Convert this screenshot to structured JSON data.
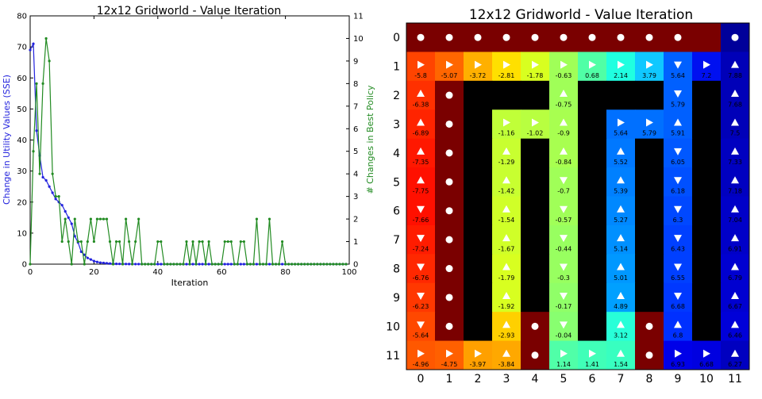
{
  "left": {
    "chart_data": {
      "type": "line",
      "title": "12x12 Gridworld - Value Iteration",
      "xlabel": "Iteration",
      "ylabel_left": "Change in Utility Values (SSE)",
      "ylabel_right": "# Changes in Best Policy",
      "xlim": [
        0,
        100
      ],
      "ylim_left": [
        0,
        80
      ],
      "ylim_right": [
        0,
        11
      ],
      "x_ticks": [
        "0",
        "20",
        "40",
        "60",
        "80",
        "100"
      ],
      "yleft_ticks": [
        "0",
        "10",
        "20",
        "30",
        "40",
        "50",
        "60",
        "70",
        "80"
      ],
      "yright_ticks": [
        "0",
        "1",
        "2",
        "3",
        "4",
        "5",
        "6",
        "7",
        "8",
        "9",
        "10",
        "11"
      ],
      "series": [
        {
          "color": "#2222dd",
          "axis": "left",
          "values": [
            69,
            71,
            43,
            35,
            28,
            27,
            25,
            23,
            21,
            20,
            19,
            17,
            15,
            13,
            9,
            7,
            4,
            3,
            2,
            1.5,
            1,
            0.7,
            0.5,
            0.4,
            0.3,
            0.2,
            0.15,
            0.1,
            0.08,
            0.06,
            0.05,
            0.04,
            0.03,
            0.02,
            0.02,
            0.01,
            0.01,
            0.01,
            0,
            0,
            0,
            0,
            0,
            0,
            0,
            0,
            0,
            0,
            0,
            0,
            0,
            0,
            0,
            0,
            0,
            0,
            0,
            0,
            0,
            0,
            0,
            0,
            0,
            0,
            0,
            0,
            0,
            0,
            0,
            0,
            0,
            0,
            0,
            0,
            0,
            0,
            0,
            0,
            0,
            0,
            0,
            0,
            0,
            0,
            0,
            0,
            0,
            0,
            0,
            0,
            0,
            0,
            0,
            0,
            0,
            0,
            0,
            0,
            0,
            0
          ]
        },
        {
          "color": "#228b22",
          "axis": "right",
          "values": [
            0,
            5,
            8,
            4,
            8,
            10,
            9,
            4,
            3,
            3,
            1,
            2,
            1,
            0,
            2,
            1,
            1,
            0,
            1,
            2,
            1,
            2,
            2,
            2,
            2,
            1,
            0,
            1,
            1,
            0,
            2,
            1,
            0,
            1,
            2,
            0,
            0,
            0,
            0,
            0,
            1,
            1,
            0,
            0,
            0,
            0,
            0,
            0,
            0,
            1,
            0,
            1,
            0,
            1,
            1,
            0,
            1,
            0,
            0,
            0,
            0,
            1,
            1,
            1,
            0,
            0,
            1,
            1,
            0,
            0,
            0,
            2,
            0,
            0,
            0,
            2,
            0,
            0,
            0,
            1,
            0,
            0,
            0,
            0,
            0,
            0,
            0,
            0,
            0,
            0,
            0,
            0,
            0,
            0,
            0,
            0,
            0,
            0,
            0,
            0
          ]
        }
      ]
    }
  },
  "right": {
    "title": "12x12 Gridworld - Value Iteration",
    "col_labels": [
      "0",
      "1",
      "2",
      "3",
      "4",
      "5",
      "6",
      "7",
      "8",
      "9",
      "10",
      "11"
    ],
    "row_labels": [
      "0",
      "1",
      "2",
      "3",
      "4",
      "5",
      "6",
      "7",
      "8",
      "9",
      "10",
      "11"
    ],
    "grid": [
      [
        [
          "#7a0000",
          "o",
          ""
        ],
        [
          "#7a0000",
          "o",
          ""
        ],
        [
          "#7a0000",
          "o",
          ""
        ],
        [
          "#7a0000",
          "o",
          ""
        ],
        [
          "#7a0000",
          "o",
          ""
        ],
        [
          "#7a0000",
          "o",
          ""
        ],
        [
          "#7a0000",
          "o",
          ""
        ],
        [
          "#7a0000",
          "o",
          ""
        ],
        [
          "#7a0000",
          "o",
          ""
        ],
        [
          "#7a0000",
          "o",
          ""
        ],
        [
          "#7a0000",
          "",
          ""
        ],
        [
          "#00009a",
          "o",
          ""
        ]
      ],
      [
        [
          "#ff4400",
          "r",
          "-5.8"
        ],
        [
          "#ff6600",
          "r",
          "-5.07"
        ],
        [
          "#ffb000",
          "r",
          "-3.72"
        ],
        [
          "#ffe000",
          "r",
          "-2.81"
        ],
        [
          "#d8ff20",
          "r",
          "-1.78"
        ],
        [
          "#a0ff58",
          "r",
          "-0.63"
        ],
        [
          "#50ffa6",
          "r",
          "0.68"
        ],
        [
          "#20ffe0",
          "r",
          "2.14"
        ],
        [
          "#10c8ff",
          "r",
          "3.79"
        ],
        [
          "#0060ff",
          "d",
          "5.64"
        ],
        [
          "#0010f0",
          "r",
          "7.2"
        ],
        [
          "#0000b8",
          "u",
          "7.88"
        ]
      ],
      [
        [
          "#ff3000",
          "u",
          "-6.38"
        ],
        [
          "#7a0000",
          "o",
          ""
        ],
        [
          "#000000",
          "",
          ""
        ],
        [
          "#000000",
          "",
          ""
        ],
        [
          "#000000",
          "",
          ""
        ],
        [
          "#a0ff58",
          "u",
          "-0.75"
        ],
        [
          "#000000",
          "",
          ""
        ],
        [
          "#000000",
          "",
          ""
        ],
        [
          "#000000",
          "",
          ""
        ],
        [
          "#0060ff",
          "d",
          "5.79"
        ],
        [
          "#000000",
          "",
          ""
        ],
        [
          "#0000b8",
          "u",
          "7.68"
        ]
      ],
      [
        [
          "#ff2400",
          "u",
          "-6.89"
        ],
        [
          "#7a0000",
          "o",
          ""
        ],
        [
          "#000000",
          "",
          ""
        ],
        [
          "#c0ff38",
          "r",
          "-1.16"
        ],
        [
          "#b8ff40",
          "r",
          "-1.02"
        ],
        [
          "#a8ff50",
          "u",
          "-0.9"
        ],
        [
          "#000000",
          "",
          ""
        ],
        [
          "#0070ff",
          "r",
          "5.64"
        ],
        [
          "#0070ff",
          "r",
          "5.79"
        ],
        [
          "#0060ff",
          "u",
          "5.91"
        ],
        [
          "#000000",
          "",
          ""
        ],
        [
          "#0000b8",
          "u",
          "7.5"
        ]
      ],
      [
        [
          "#ff1800",
          "u",
          "-7.35"
        ],
        [
          "#7a0000",
          "o",
          ""
        ],
        [
          "#000000",
          "",
          ""
        ],
        [
          "#c8ff30",
          "u",
          "-1.29"
        ],
        [
          "#000000",
          "",
          ""
        ],
        [
          "#a8ff50",
          "u",
          "-0.84"
        ],
        [
          "#000000",
          "",
          ""
        ],
        [
          "#0078ff",
          "u",
          "5.52"
        ],
        [
          "#000000",
          "",
          ""
        ],
        [
          "#0058ff",
          "d",
          "6.05"
        ],
        [
          "#000000",
          "",
          ""
        ],
        [
          "#0000c0",
          "u",
          "7.33"
        ]
      ],
      [
        [
          "#ff1000",
          "u",
          "-7.75"
        ],
        [
          "#7a0000",
          "o",
          ""
        ],
        [
          "#000000",
          "",
          ""
        ],
        [
          "#c8ff30",
          "u",
          "-1.42"
        ],
        [
          "#000000",
          "",
          ""
        ],
        [
          "#a0ff58",
          "d",
          "-0.7"
        ],
        [
          "#000000",
          "",
          ""
        ],
        [
          "#0080ff",
          "u",
          "5.39"
        ],
        [
          "#000000",
          "",
          ""
        ],
        [
          "#0050ff",
          "d",
          "6.18"
        ],
        [
          "#000000",
          "",
          ""
        ],
        [
          "#0000c0",
          "u",
          "7.18"
        ]
      ],
      [
        [
          "#ff1000",
          "d",
          "-7.66"
        ],
        [
          "#7a0000",
          "o",
          ""
        ],
        [
          "#000000",
          "",
          ""
        ],
        [
          "#d0ff28",
          "u",
          "-1.54"
        ],
        [
          "#000000",
          "",
          ""
        ],
        [
          "#a0ff58",
          "d",
          "-0.57"
        ],
        [
          "#000000",
          "",
          ""
        ],
        [
          "#0088ff",
          "u",
          "5.27"
        ],
        [
          "#000000",
          "",
          ""
        ],
        [
          "#0048ff",
          "d",
          "6.3"
        ],
        [
          "#000000",
          "",
          ""
        ],
        [
          "#0000c8",
          "u",
          "7.04"
        ]
      ],
      [
        [
          "#ff1c00",
          "d",
          "-7.24"
        ],
        [
          "#7a0000",
          "o",
          ""
        ],
        [
          "#000000",
          "",
          ""
        ],
        [
          "#d0ff28",
          "u",
          "-1.67"
        ],
        [
          "#000000",
          "",
          ""
        ],
        [
          "#98ff60",
          "d",
          "-0.44"
        ],
        [
          "#000000",
          "",
          ""
        ],
        [
          "#0090ff",
          "u",
          "5.14"
        ],
        [
          "#000000",
          "",
          ""
        ],
        [
          "#0040ff",
          "d",
          "6.43"
        ],
        [
          "#000000",
          "",
          ""
        ],
        [
          "#0000c8",
          "u",
          "6.91"
        ]
      ],
      [
        [
          "#ff2800",
          "d",
          "-6.76"
        ],
        [
          "#7a0000",
          "o",
          ""
        ],
        [
          "#000000",
          "",
          ""
        ],
        [
          "#d8ff20",
          "u",
          "-1.79"
        ],
        [
          "#000000",
          "",
          ""
        ],
        [
          "#98ff60",
          "d",
          "-0.3"
        ],
        [
          "#000000",
          "",
          ""
        ],
        [
          "#0098ff",
          "u",
          "5.01"
        ],
        [
          "#000000",
          "",
          ""
        ],
        [
          "#0040ff",
          "d",
          "6.55"
        ],
        [
          "#000000",
          "",
          ""
        ],
        [
          "#0000d0",
          "u",
          "6.79"
        ]
      ],
      [
        [
          "#ff3800",
          "d",
          "-6.23"
        ],
        [
          "#7a0000",
          "o",
          ""
        ],
        [
          "#000000",
          "",
          ""
        ],
        [
          "#d8ff20",
          "u",
          "-1.92"
        ],
        [
          "#000000",
          "",
          ""
        ],
        [
          "#90ff68",
          "d",
          "-0.17"
        ],
        [
          "#000000",
          "",
          ""
        ],
        [
          "#00a0ff",
          "u",
          "4.89"
        ],
        [
          "#000000",
          "",
          ""
        ],
        [
          "#0038ff",
          "d",
          "6.68"
        ],
        [
          "#000000",
          "",
          ""
        ],
        [
          "#0000d0",
          "u",
          "6.67"
        ]
      ],
      [
        [
          "#ff4800",
          "d",
          "-5.64"
        ],
        [
          "#7a0000",
          "o",
          ""
        ],
        [
          "#000000",
          "",
          ""
        ],
        [
          "#ffd000",
          "u",
          "-2.93"
        ],
        [
          "#7a0000",
          "o",
          ""
        ],
        [
          "#88ff70",
          "d",
          "-0.04"
        ],
        [
          "#000000",
          "",
          ""
        ],
        [
          "#28ffd8",
          "u",
          "3.12"
        ],
        [
          "#7a0000",
          "o",
          ""
        ],
        [
          "#0030ff",
          "u",
          "6.8"
        ],
        [
          "#000000",
          "",
          ""
        ],
        [
          "#0000d8",
          "u",
          "6.46"
        ]
      ],
      [
        [
          "#ff5800",
          "r",
          "-4.96"
        ],
        [
          "#ff6000",
          "r",
          "-4.75"
        ],
        [
          "#ffa000",
          "r",
          "-3.97"
        ],
        [
          "#ffa800",
          "u",
          "-3.84"
        ],
        [
          "#7a0000",
          "o",
          ""
        ],
        [
          "#50ffa8",
          "r",
          "1.14"
        ],
        [
          "#40ffb8",
          "r",
          "1.41"
        ],
        [
          "#38ffc0",
          "u",
          "1.54"
        ],
        [
          "#7a0000",
          "o",
          ""
        ],
        [
          "#0000e8",
          "r",
          "6.93"
        ],
        [
          "#0000e0",
          "r",
          "6.68"
        ],
        [
          "#0000c0",
          "u",
          "6.27"
        ]
      ]
    ]
  }
}
